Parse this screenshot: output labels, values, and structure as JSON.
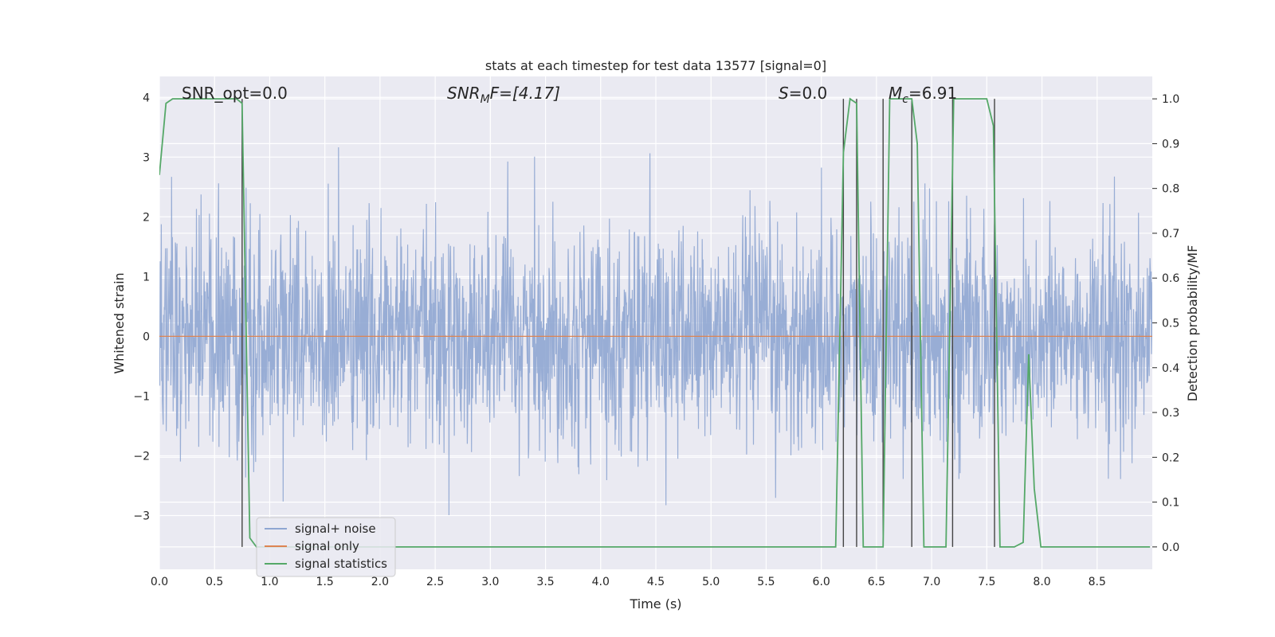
{
  "chart_data": {
    "type": "line",
    "title": "stats at each timestep for test data 13577 [signal=0]",
    "xlabel": "Time (s)",
    "ylabel_left": "Whitened strain",
    "ylabel_right": "Detection probability/MF",
    "xlim": [
      0,
      9.0
    ],
    "ylim_left": [
      -3.9,
      4.35
    ],
    "ylim_right": [
      -0.05,
      1.05
    ],
    "x_ticks": [
      "0.0",
      "0.5",
      "1.0",
      "1.5",
      "2.0",
      "2.5",
      "3.0",
      "3.5",
      "4.0",
      "4.5",
      "5.0",
      "5.5",
      "6.0",
      "6.5",
      "7.0",
      "7.5",
      "8.0",
      "8.5"
    ],
    "y_ticks_left": [
      "−3",
      "−2",
      "−1",
      "0",
      "1",
      "2",
      "3",
      "4"
    ],
    "y_ticks_right": [
      "0.0",
      "0.1",
      "0.2",
      "0.3",
      "0.4",
      "0.5",
      "0.6",
      "0.7",
      "0.8",
      "0.9",
      "1.0"
    ],
    "grid": true,
    "legend_position": "lower-left",
    "annotations": {
      "snr_opt": "SNR_opt=0.0",
      "snr_mf_main": "SNR",
      "snr_mf_sub": "M",
      "snr_mf_rest": "F=[4.17]",
      "s_label": "S",
      "s_rest": "=0.0",
      "mc_main": "M",
      "mc_sub": "c",
      "mc_rest": "=6.91"
    },
    "series": [
      {
        "name": "signal+ noise",
        "color": "#8fa6d2",
        "axis": "left",
        "description_of_values": "whitened noise, amplitude about ±1.5 with spikes to ~3.5",
        "typical_range": [
          -3.5,
          3.5
        ]
      },
      {
        "name": "signal only",
        "color": "#dd8452",
        "axis": "left",
        "x": [
          0.0,
          9.0
        ],
        "y": [
          0.0,
          0.0
        ]
      },
      {
        "name": "signal statistics",
        "color": "#55a868",
        "axis": "right",
        "x": [
          0.0,
          0.06,
          0.12,
          0.7,
          0.75,
          0.82,
          0.88,
          6.13,
          6.2,
          6.26,
          6.32,
          6.38,
          6.56,
          6.62,
          6.82,
          6.87,
          6.93,
          7.13,
          7.2,
          7.5,
          7.56,
          7.62,
          7.75,
          7.83,
          7.88,
          7.93,
          7.99,
          8.98
        ],
        "y": [
          0.83,
          0.99,
          1.0,
          1.0,
          0.99,
          0.02,
          0.0,
          0.0,
          0.88,
          1.0,
          0.99,
          0.0,
          0.0,
          1.0,
          1.0,
          0.9,
          0.0,
          0.0,
          1.0,
          1.0,
          0.94,
          0.0,
          0.0,
          0.01,
          0.43,
          0.13,
          0.0,
          0.0
        ]
      }
    ],
    "vertical_lines_x": [
      0.75,
      6.2,
      6.32,
      6.56,
      6.82,
      7.19,
      7.57
    ]
  }
}
